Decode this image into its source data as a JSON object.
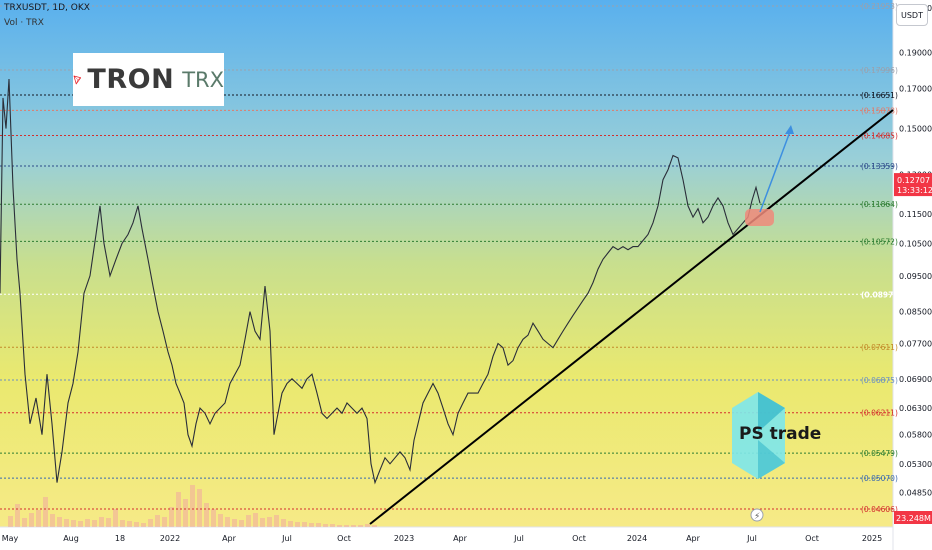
{
  "header": {
    "symbol_line": "TRXUSDT, 1D, OKX",
    "volume_line": "Vol · TRX"
  },
  "currency_button": "USDT",
  "logo": {
    "main": "TRON",
    "ticker": "TRX"
  },
  "watermark": "PS trade",
  "chart_data": {
    "type": "line",
    "title": "",
    "xlabel": "",
    "ylabel": "",
    "ylim": [
      0.0435,
      0.23
    ],
    "y_ticks": [
      "0.21800",
      "0.19000",
      "0.17000",
      "0.15000",
      "0.13000",
      "0.11500",
      "0.10500",
      "0.09500",
      "0.08500",
      "0.07700",
      "0.06900",
      "0.06300",
      "0.05800",
      "0.05300",
      "0.04850"
    ],
    "x_ticks": [
      "May",
      "Aug",
      "18",
      "2022",
      "Apr",
      "Jul",
      "Oct",
      "2023",
      "Apr",
      "Jul",
      "Oct",
      "2024",
      "Apr",
      "Jul",
      "Oct",
      "2025"
    ],
    "levels": [
      {
        "label": "0.21953",
        "value": 0.21953,
        "color": "#9aa1ad",
        "style": "dotted"
      },
      {
        "label": "0.17996",
        "value": 0.17996,
        "color": "#9aa1ad",
        "style": "dotted"
      },
      {
        "label": "0.16651",
        "value": 0.16651,
        "color": "#131722",
        "style": "dotted"
      },
      {
        "label": "0.15878",
        "value": 0.15878,
        "color": "#e07b6b",
        "style": "dotted"
      },
      {
        "label": "0.14685",
        "value": 0.14685,
        "color": "#d32f2f",
        "style": "dotted"
      },
      {
        "label": "0.13359",
        "value": 0.13359,
        "color": "#2c4a8a",
        "style": "dotted"
      },
      {
        "label": "0.11864",
        "value": 0.11864,
        "color": "#2e7d32",
        "style": "dotted"
      },
      {
        "label": "0.10572",
        "value": 0.10572,
        "color": "#2e7d32",
        "style": "dotted"
      },
      {
        "label": "0.08970",
        "value": 0.0897,
        "color": "#ffffff",
        "style": "dotted"
      },
      {
        "label": "0.07611",
        "value": 0.07611,
        "color": "#c28a2a",
        "style": "dotted"
      },
      {
        "label": "0.06875",
        "value": 0.06875,
        "color": "#6b8fc2",
        "style": "dotted"
      },
      {
        "label": "0.06211",
        "value": 0.06211,
        "color": "#d32f2f",
        "style": "dotted"
      },
      {
        "label": "0.05479",
        "value": 0.05479,
        "color": "#2e7d32",
        "style": "dotted"
      },
      {
        "label": "0.05070",
        "value": 0.0507,
        "color": "#3a6ab0",
        "style": "dotted"
      },
      {
        "label": "0.04606",
        "value": 0.04606,
        "color": "#d32f2f",
        "style": "dotted"
      }
    ],
    "current_price": {
      "label": "0.12707",
      "value": 0.12707,
      "countdown": "13:33:12",
      "color": "#f23645"
    },
    "volume_badge": "23.248M",
    "price_series": [
      [
        0,
        0.09
      ],
      [
        3,
        0.165
      ],
      [
        6,
        0.15
      ],
      [
        9,
        0.175
      ],
      [
        13,
        0.125
      ],
      [
        17,
        0.1
      ],
      [
        20,
        0.09
      ],
      [
        25,
        0.07
      ],
      [
        30,
        0.06
      ],
      [
        36,
        0.065
      ],
      [
        42,
        0.058
      ],
      [
        47,
        0.07
      ],
      [
        52,
        0.06
      ],
      [
        57,
        0.05
      ],
      [
        62,
        0.055
      ],
      [
        68,
        0.064
      ],
      [
        73,
        0.068
      ],
      [
        78,
        0.075
      ],
      [
        84,
        0.09
      ],
      [
        90,
        0.095
      ],
      [
        96,
        0.108
      ],
      [
        100,
        0.118
      ],
      [
        104,
        0.105
      ],
      [
        110,
        0.095
      ],
      [
        116,
        0.1
      ],
      [
        122,
        0.105
      ],
      [
        128,
        0.108
      ],
      [
        133,
        0.112
      ],
      [
        138,
        0.118
      ],
      [
        142,
        0.11
      ],
      [
        148,
        0.1
      ],
      [
        153,
        0.092
      ],
      [
        158,
        0.085
      ],
      [
        163,
        0.08
      ],
      [
        168,
        0.075
      ],
      [
        172,
        0.072
      ],
      [
        176,
        0.068
      ],
      [
        180,
        0.066
      ],
      [
        184,
        0.064
      ],
      [
        188,
        0.058
      ],
      [
        192,
        0.056
      ],
      [
        196,
        0.06
      ],
      [
        200,
        0.063
      ],
      [
        205,
        0.062
      ],
      [
        210,
        0.06
      ],
      [
        215,
        0.062
      ],
      [
        220,
        0.063
      ],
      [
        225,
        0.064
      ],
      [
        230,
        0.068
      ],
      [
        235,
        0.07
      ],
      [
        240,
        0.072
      ],
      [
        245,
        0.078
      ],
      [
        250,
        0.085
      ],
      [
        255,
        0.08
      ],
      [
        260,
        0.078
      ],
      [
        265,
        0.092
      ],
      [
        270,
        0.08
      ],
      [
        274,
        0.058
      ],
      [
        277,
        0.061
      ],
      [
        282,
        0.066
      ],
      [
        287,
        0.068
      ],
      [
        292,
        0.069
      ],
      [
        297,
        0.068
      ],
      [
        302,
        0.067
      ],
      [
        307,
        0.069
      ],
      [
        312,
        0.07
      ],
      [
        317,
        0.066
      ],
      [
        322,
        0.062
      ],
      [
        327,
        0.061
      ],
      [
        332,
        0.062
      ],
      [
        337,
        0.063
      ],
      [
        342,
        0.062
      ],
      [
        347,
        0.064
      ],
      [
        352,
        0.063
      ],
      [
        357,
        0.062
      ],
      [
        362,
        0.063
      ],
      [
        367,
        0.061
      ],
      [
        371,
        0.053
      ],
      [
        375,
        0.05
      ],
      [
        380,
        0.052
      ],
      [
        385,
        0.054
      ],
      [
        390,
        0.053
      ],
      [
        395,
        0.054
      ],
      [
        400,
        0.055
      ],
      [
        405,
        0.054
      ],
      [
        410,
        0.052
      ],
      [
        414,
        0.057
      ],
      [
        418,
        0.06
      ],
      [
        423,
        0.064
      ],
      [
        428,
        0.066
      ],
      [
        433,
        0.068
      ],
      [
        438,
        0.066
      ],
      [
        443,
        0.063
      ],
      [
        448,
        0.06
      ],
      [
        453,
        0.058
      ],
      [
        458,
        0.062
      ],
      [
        463,
        0.064
      ],
      [
        468,
        0.066
      ],
      [
        473,
        0.066
      ],
      [
        478,
        0.066
      ],
      [
        483,
        0.068
      ],
      [
        488,
        0.07
      ],
      [
        493,
        0.074
      ],
      [
        498,
        0.077
      ],
      [
        503,
        0.076
      ],
      [
        508,
        0.072
      ],
      [
        513,
        0.073
      ],
      [
        518,
        0.076
      ],
      [
        523,
        0.078
      ],
      [
        528,
        0.079
      ],
      [
        533,
        0.082
      ],
      [
        538,
        0.08
      ],
      [
        543,
        0.078
      ],
      [
        548,
        0.077
      ],
      [
        553,
        0.076
      ],
      [
        558,
        0.078
      ],
      [
        563,
        0.08
      ],
      [
        568,
        0.082
      ],
      [
        573,
        0.084
      ],
      [
        578,
        0.086
      ],
      [
        583,
        0.088
      ],
      [
        588,
        0.09
      ],
      [
        593,
        0.093
      ],
      [
        598,
        0.097
      ],
      [
        603,
        0.1
      ],
      [
        608,
        0.102
      ],
      [
        613,
        0.104
      ],
      [
        618,
        0.103
      ],
      [
        623,
        0.104
      ],
      [
        628,
        0.103
      ],
      [
        633,
        0.104
      ],
      [
        638,
        0.104
      ],
      [
        643,
        0.106
      ],
      [
        648,
        0.108
      ],
      [
        653,
        0.112
      ],
      [
        658,
        0.118
      ],
      [
        663,
        0.128
      ],
      [
        668,
        0.132
      ],
      [
        673,
        0.138
      ],
      [
        678,
        0.137
      ],
      [
        683,
        0.128
      ],
      [
        688,
        0.118
      ],
      [
        693,
        0.114
      ],
      [
        698,
        0.117
      ],
      [
        703,
        0.112
      ],
      [
        708,
        0.114
      ],
      [
        713,
        0.118
      ],
      [
        718,
        0.121
      ],
      [
        723,
        0.118
      ],
      [
        728,
        0.112
      ],
      [
        733,
        0.108
      ],
      [
        738,
        0.11
      ],
      [
        743,
        0.112
      ],
      [
        748,
        0.114
      ],
      [
        752,
        0.12
      ],
      [
        756,
        0.125
      ],
      [
        760,
        0.119
      ]
    ],
    "volume_series": [
      [
        8,
        11
      ],
      [
        15,
        23
      ],
      [
        22,
        9
      ],
      [
        29,
        14
      ],
      [
        36,
        17
      ],
      [
        43,
        30
      ],
      [
        50,
        13
      ],
      [
        57,
        10
      ],
      [
        64,
        8
      ],
      [
        71,
        7
      ],
      [
        78,
        6
      ],
      [
        85,
        8
      ],
      [
        92,
        7
      ],
      [
        99,
        10
      ],
      [
        106,
        9
      ],
      [
        113,
        18
      ],
      [
        120,
        7
      ],
      [
        127,
        6
      ],
      [
        134,
        5
      ],
      [
        141,
        4
      ],
      [
        148,
        8
      ],
      [
        155,
        12
      ],
      [
        162,
        10
      ],
      [
        169,
        20
      ],
      [
        176,
        35
      ],
      [
        183,
        28
      ],
      [
        190,
        42
      ],
      [
        197,
        38
      ],
      [
        204,
        24
      ],
      [
        211,
        18
      ],
      [
        218,
        13
      ],
      [
        225,
        10
      ],
      [
        232,
        8
      ],
      [
        239,
        7
      ],
      [
        246,
        12
      ],
      [
        253,
        14
      ],
      [
        260,
        9
      ],
      [
        267,
        10
      ],
      [
        274,
        12
      ],
      [
        281,
        8
      ],
      [
        288,
        6
      ],
      [
        295,
        5
      ],
      [
        302,
        5
      ],
      [
        309,
        4
      ],
      [
        316,
        4
      ],
      [
        323,
        3
      ],
      [
        330,
        3
      ],
      [
        337,
        2
      ],
      [
        344,
        2
      ],
      [
        351,
        2
      ],
      [
        358,
        2
      ],
      [
        365,
        3
      ],
      [
        372,
        2
      ]
    ]
  }
}
